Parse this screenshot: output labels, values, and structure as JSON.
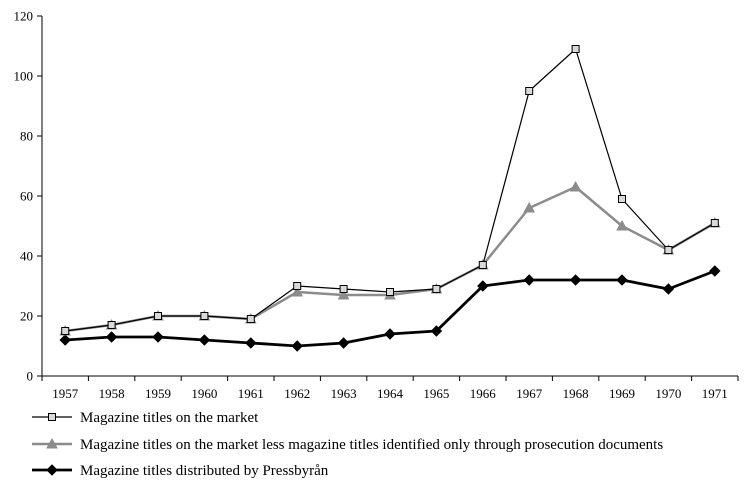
{
  "chart_data": {
    "type": "line",
    "title": "",
    "xlabel": "",
    "ylabel": "",
    "x": [
      "1957",
      "1958",
      "1959",
      "1960",
      "1961",
      "1962",
      "1963",
      "1964",
      "1965",
      "1966",
      "1967",
      "1968",
      "1969",
      "1970",
      "1971"
    ],
    "ylim": [
      0,
      120
    ],
    "yticks": [
      0,
      20,
      40,
      60,
      80,
      100,
      120
    ],
    "grid": false,
    "legend_position": "bottom",
    "series": [
      {
        "name": "Magazine titles on the market",
        "color": "#000000",
        "marker": "square",
        "values": [
          15,
          17,
          20,
          20,
          19,
          30,
          29,
          28,
          29,
          37,
          95,
          109,
          59,
          42,
          51
        ]
      },
      {
        "name": "Magazine titles on the market less magazine titles identified only through prosecution documents",
        "color": "#8c8c8c",
        "marker": "triangle",
        "values": [
          15,
          17,
          20,
          20,
          19,
          28,
          27,
          27,
          29,
          37,
          56,
          63,
          50,
          42,
          51
        ]
      },
      {
        "name": "Magazine titles distributed by Pressbyrån",
        "color": "#000000",
        "marker": "diamond",
        "values": [
          12,
          13,
          13,
          12,
          11,
          10,
          11,
          14,
          15,
          30,
          32,
          32,
          32,
          29,
          35
        ]
      }
    ]
  }
}
